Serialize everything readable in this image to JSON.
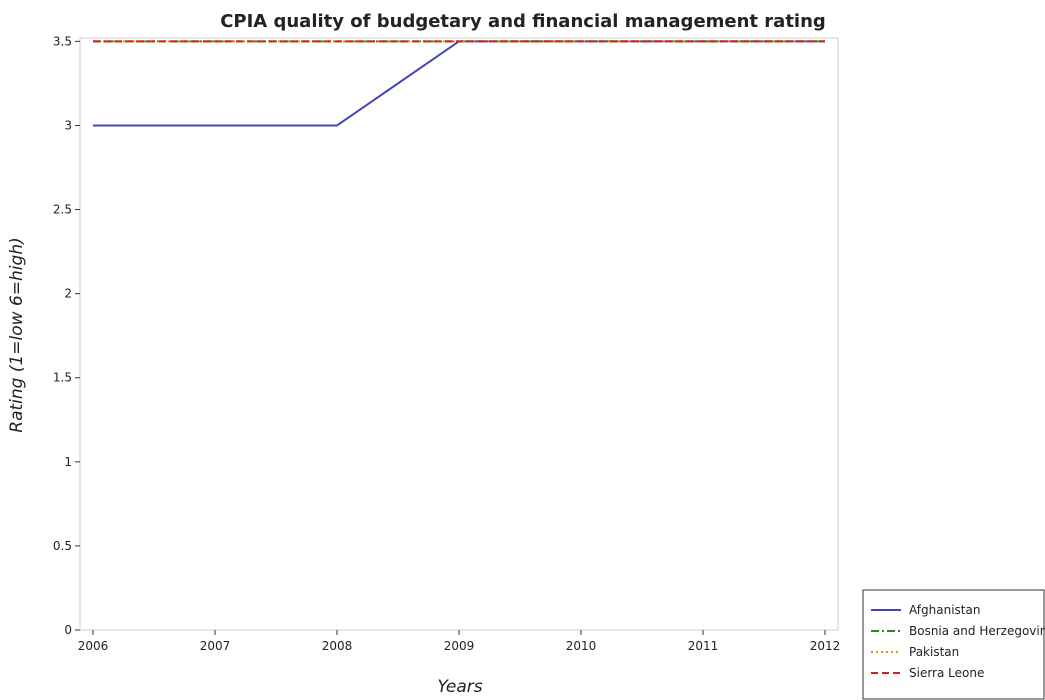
{
  "chart_data": {
    "type": "line",
    "title": "CPIA quality of budgetary and financial management rating",
    "xlabel": "Years",
    "ylabel": "Rating (1=low 6=high)",
    "categories": [
      "2006",
      "2007",
      "2008",
      "2009",
      "2010",
      "2011",
      "2012"
    ],
    "yticks": [
      "0",
      "0.5",
      "1",
      "1.5",
      "2",
      "2.5",
      "3",
      "3.5"
    ],
    "ylim": [
      0,
      3.52
    ],
    "grid": false,
    "legend_position": "bottom-right",
    "series": [
      {
        "name": "Afghanistan",
        "values": [
          3.0,
          3.0,
          3.0,
          3.5,
          3.5,
          3.5,
          3.5
        ],
        "color": "#4444bb",
        "style": "solid"
      },
      {
        "name": "Bosnia and Herzegovina",
        "values": [
          3.5,
          3.5,
          3.5,
          3.5,
          3.5,
          3.5,
          3.5
        ],
        "color": "#228b22",
        "style": "dashdot"
      },
      {
        "name": "Pakistan",
        "values": [
          3.5,
          3.5,
          3.5,
          3.5,
          3.5,
          3.5,
          3.5
        ],
        "color": "#e69500",
        "style": "dotted"
      },
      {
        "name": "Sierra Leone",
        "values": [
          3.5,
          3.5,
          3.5,
          3.5,
          3.5,
          3.5,
          3.5
        ],
        "color": "#cc2222",
        "style": "dashed"
      }
    ]
  }
}
